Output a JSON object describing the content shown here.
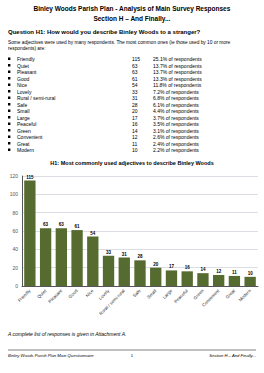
{
  "chart_data": {
    "type": "bar",
    "title": "H1: Most commonly used adjectives to describe Binley Woods",
    "categories": [
      "Friendly",
      "Quiet",
      "Pleasant",
      "Good",
      "Nice",
      "Lovely",
      "Rural / semi-rural",
      "Safe",
      "Small",
      "Large",
      "Peaceful",
      "Green",
      "Convenient",
      "Great",
      "Modern"
    ],
    "values": [
      115,
      63,
      63,
      61,
      54,
      33,
      31,
      28,
      20,
      17,
      16,
      14,
      12,
      11,
      10
    ],
    "color": "#556b2f",
    "ylim": [
      0,
      120
    ],
    "yticks": [
      0,
      20,
      40,
      60,
      80,
      100,
      120
    ],
    "grid": true,
    "data_labels": true,
    "annotations": [
      "Binley Woods Parish Plan - Analysis of Main Survey Responses",
      "Section H – And Finally...",
      "Question H1: How would you describe Binley Woods to a stranger?",
      "Some adjectives were used by many respondents. The most common ones (ie those used by 10 or more\nrespondents) are:",
      [
        "Friendly",
        "115",
        "25.1% of respondents"
      ],
      [
        "Quiet",
        "63",
        "13.7% of respondents"
      ],
      [
        "Pleasant",
        "63",
        "13.7% of respondents"
      ],
      [
        "Good",
        "61",
        "13.3% of respondents"
      ],
      [
        "Nice",
        "54",
        "11.8% of respondents"
      ],
      [
        "Lovely",
        "33",
        "7.2% of respondents"
      ],
      [
        "Rural / semi-rural",
        "31",
        "6.8% of respondents"
      ],
      [
        "Safe",
        "28",
        "6.1% of respondents"
      ],
      [
        "Small",
        "20",
        "4.4% of respondents"
      ],
      [
        "Large",
        "17",
        "3.7% of respondents"
      ],
      [
        "Peaceful",
        "16",
        "3.5% of respondents"
      ],
      [
        "Green",
        "14",
        "3.1% of respondents"
      ],
      [
        "Convenient",
        "12",
        "2.6% of respondents"
      ],
      [
        "Great",
        "11",
        "2.4% of respondents"
      ],
      [
        "Modern",
        "10",
        "2.2% of respondents"
      ],
      "A complete list of responses is given in Attachment A.",
      "Binley Woods Parish Plan Main Questionnaire",
      "1",
      "Section H – And Finally..."
    ]
  }
}
